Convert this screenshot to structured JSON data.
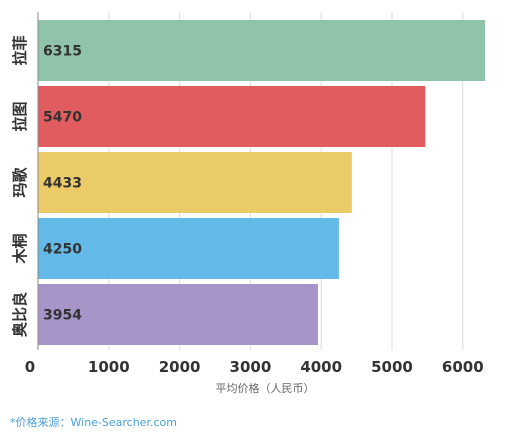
{
  "chart_data": {
    "type": "bar",
    "orientation": "horizontal",
    "categories": [
      "拉菲",
      "拉图",
      "玛歌",
      "木桐",
      "奥比良"
    ],
    "values": [
      6315,
      5470,
      4433,
      4250,
      3954
    ],
    "colors": [
      "#8fc4ab",
      "#e05c5f",
      "#ebca68",
      "#63b9e8",
      "#a794c8"
    ],
    "xlabel": "平均价格（人民币）",
    "ylabel": "",
    "title": "",
    "xlim": [
      0,
      6500
    ],
    "xticks": [
      0,
      1000,
      2000,
      3000,
      4000,
      5000,
      6000
    ],
    "grid": true,
    "data_labels": true
  },
  "source_note": "*价格来源：Wine-Searcher.com"
}
